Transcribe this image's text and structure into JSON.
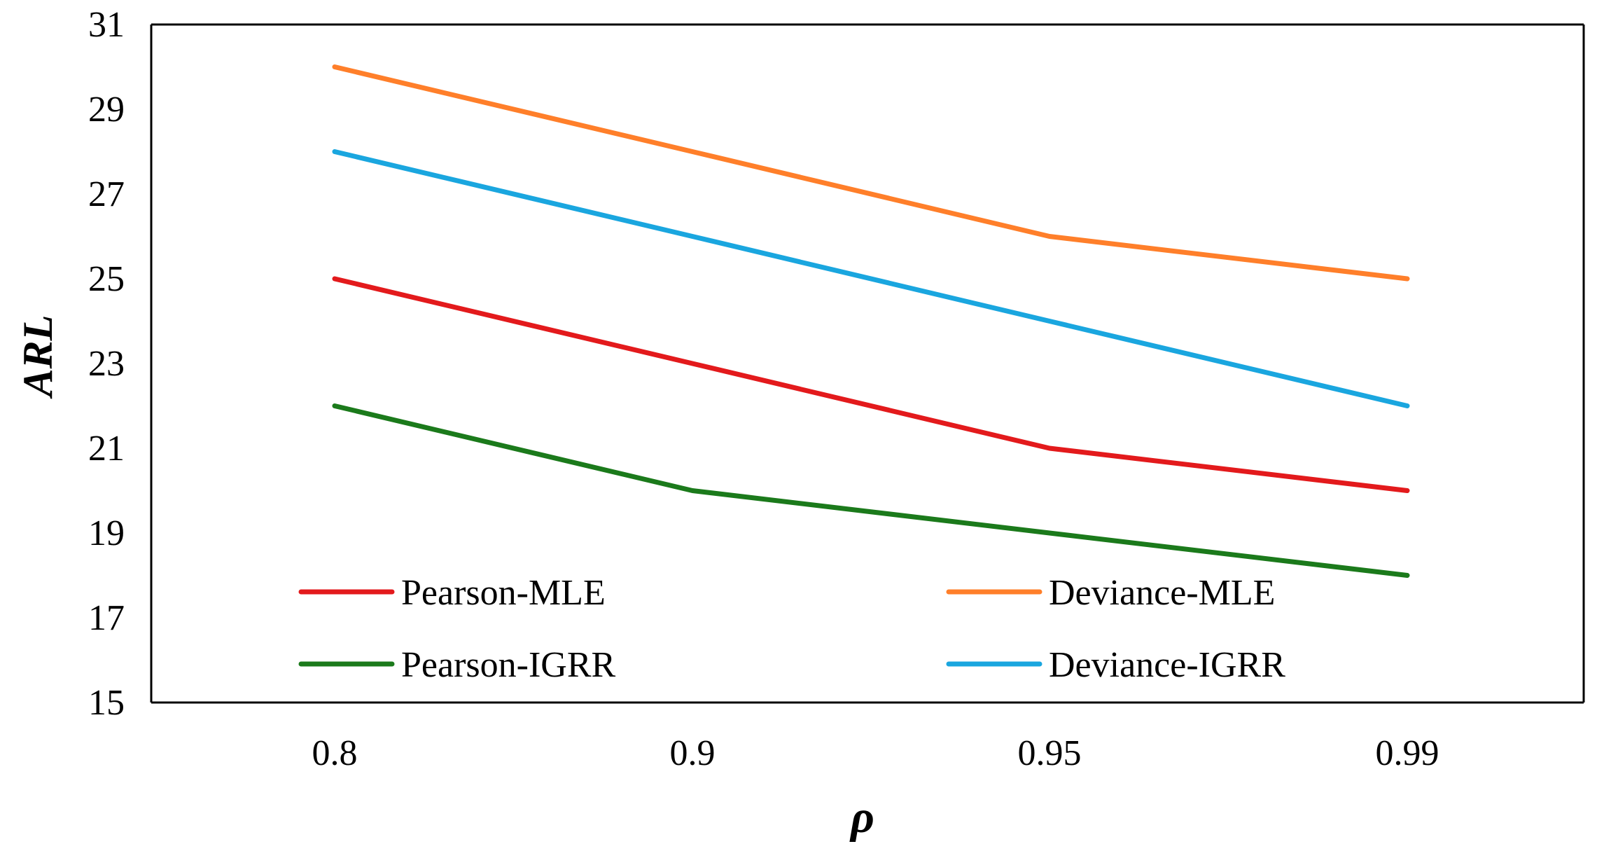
{
  "chart_data": {
    "type": "line",
    "title": "",
    "xlabel": "ρ",
    "ylabel": "ARL",
    "categories": [
      "0.8",
      "0.9",
      "0.95",
      "0.99"
    ],
    "ylim": [
      15,
      31
    ],
    "yticks": [
      15,
      17,
      19,
      21,
      23,
      25,
      27,
      29,
      31
    ],
    "grid": false,
    "legend_position": "bottom-inside",
    "series": [
      {
        "name": "Pearson-MLE",
        "color": "#e31a1c",
        "values": [
          25,
          23,
          21,
          20
        ]
      },
      {
        "name": "Deviance-MLE",
        "color": "#ff7f2a",
        "values": [
          30,
          28,
          26,
          25
        ]
      },
      {
        "name": "Pearson-IGRR",
        "color": "#1b7a1b",
        "values": [
          22,
          20,
          19,
          18
        ]
      },
      {
        "name": "Deviance-IGRR",
        "color": "#1aa6df",
        "values": [
          28,
          26,
          24,
          22
        ]
      }
    ]
  }
}
